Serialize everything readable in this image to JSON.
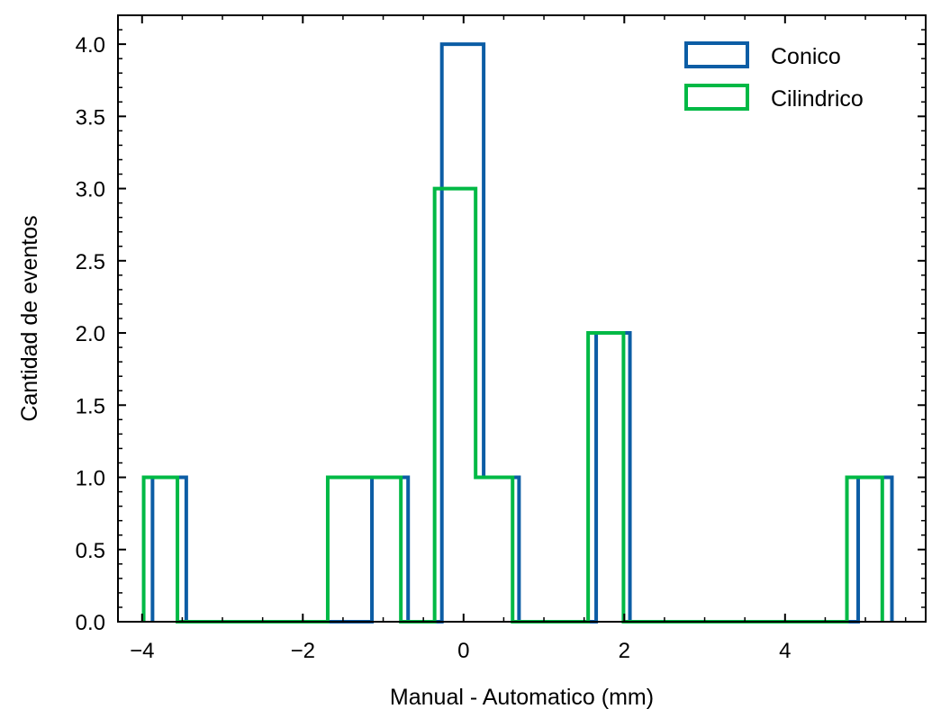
{
  "chart_data": {
    "type": "histogram",
    "title": "",
    "xlabel": "Manual - Automatico (mm)",
    "ylabel": "Cantidad de eventos",
    "xlim": [
      -4.3,
      5.75
    ],
    "ylim": [
      0,
      4.2
    ],
    "x_ticks": [
      -4,
      -2,
      0,
      2,
      4
    ],
    "x_tick_labels": [
      "−4",
      "−2",
      "0",
      "2",
      "4"
    ],
    "y_ticks": [
      0.0,
      0.5,
      1.0,
      1.5,
      2.0,
      2.5,
      3.0,
      3.5,
      4.0
    ],
    "y_tick_labels": [
      "0.0",
      "0.5",
      "1.0",
      "1.5",
      "2.0",
      "2.5",
      "3.0",
      "3.5",
      "4.0"
    ],
    "x_minor_step": 0.5,
    "y_minor_step": 0.1,
    "grid": false,
    "legend_position": "top-right",
    "series": [
      {
        "name": "Conico",
        "color": "#0C5DA5",
        "bin_edges": [
          -3.87,
          -3.45,
          -3.03,
          -2.61,
          -2.19,
          -1.77,
          -1.35,
          -1.14,
          -0.69,
          -0.27,
          0.25,
          0.69,
          1.11,
          1.65,
          2.07,
          2.49,
          2.91,
          3.33,
          3.75,
          4.17,
          4.59,
          4.91,
          5.33
        ],
        "counts": [
          1,
          0,
          0,
          0,
          0,
          0,
          0,
          1,
          0,
          4,
          1,
          0,
          0,
          2,
          0,
          0,
          0,
          0,
          0,
          0,
          0,
          1
        ]
      },
      {
        "name": "Cilindrico",
        "color": "#00B945",
        "bin_edges": [
          -3.98,
          -3.56,
          -3.14,
          -2.72,
          -2.3,
          -1.88,
          -1.69,
          -0.78,
          -0.36,
          0.15,
          0.61,
          1.03,
          1.55,
          1.99,
          2.41,
          2.83,
          3.25,
          3.67,
          4.09,
          4.51,
          4.77,
          5.21
        ],
        "counts": [
          1,
          0,
          0,
          0,
          0,
          0,
          1,
          0,
          3,
          1,
          0,
          0,
          2,
          0,
          0,
          0,
          0,
          0,
          0,
          0,
          1
        ]
      }
    ]
  }
}
